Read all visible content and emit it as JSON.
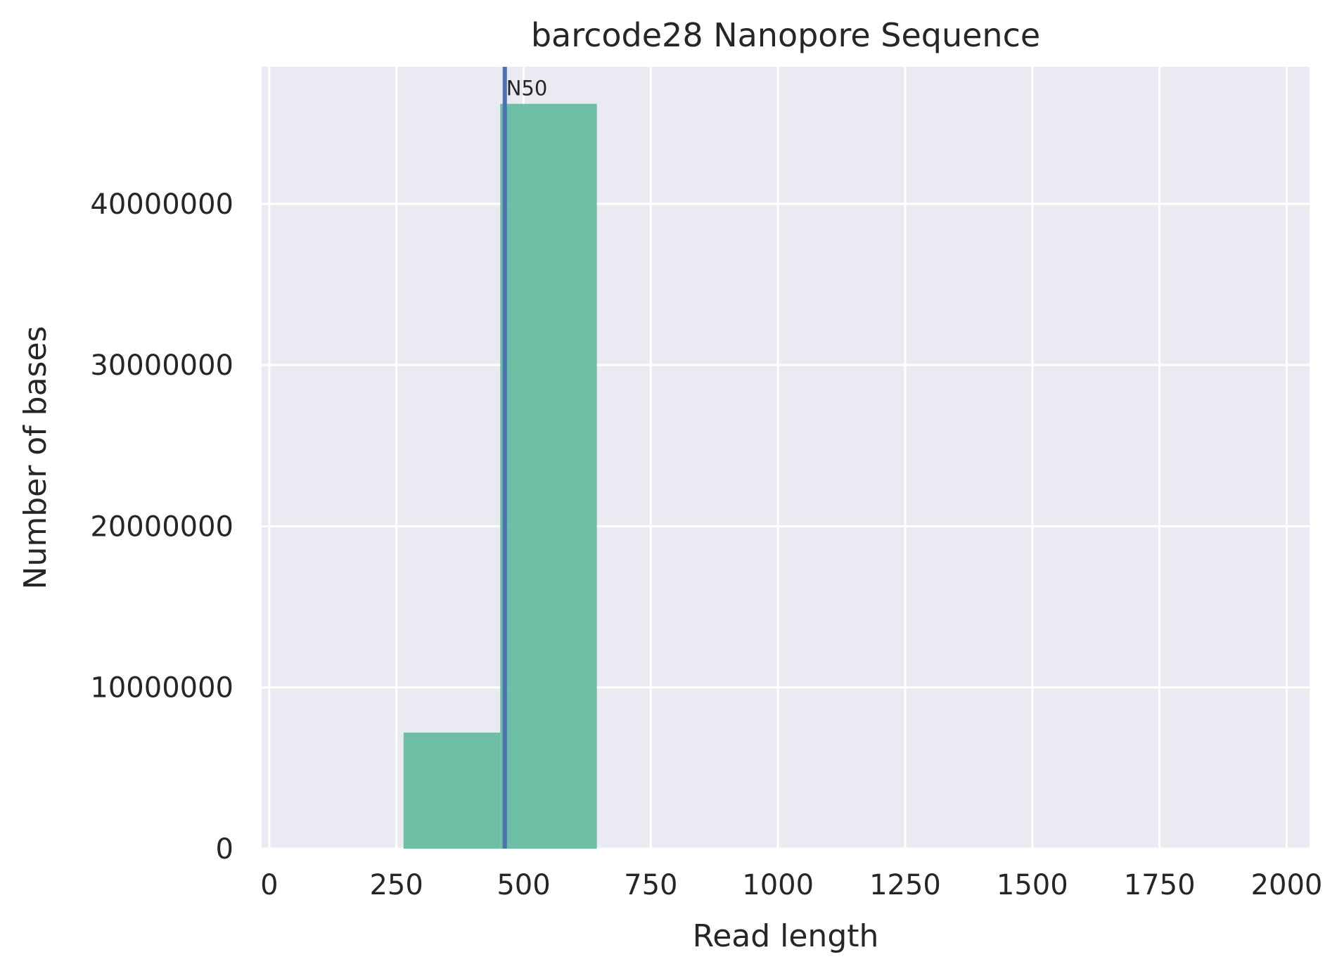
{
  "chart_data": {
    "type": "bar",
    "title": "barcode28 Nanopore Sequence",
    "xlabel": "Read length",
    "ylabel": "Number of bases",
    "xlim": [
      -15,
      2045
    ],
    "ylim": [
      0,
      48500000
    ],
    "x_ticks": [
      0,
      250,
      500,
      750,
      1000,
      1250,
      1500,
      1750,
      2000
    ],
    "x_tick_labels": [
      "0",
      "250",
      "500",
      "750",
      "1000",
      "1250",
      "1500",
      "1750",
      "2000"
    ],
    "y_ticks": [
      0,
      10000000,
      20000000,
      30000000,
      40000000
    ],
    "y_tick_labels": [
      "0",
      "10000000",
      "20000000",
      "30000000",
      "40000000"
    ],
    "bins": [
      {
        "x0": 264,
        "x1": 454,
        "value": 7200000
      },
      {
        "x0": 454,
        "x1": 644,
        "value": 46200000
      }
    ],
    "vline": {
      "x": 463,
      "label": "N50"
    },
    "grid": true,
    "colors": {
      "background": "#eaeaf2",
      "grid": "#ffffff",
      "bar": "#66bc9f",
      "vline": "#4c72b0",
      "text": "#262626"
    }
  }
}
